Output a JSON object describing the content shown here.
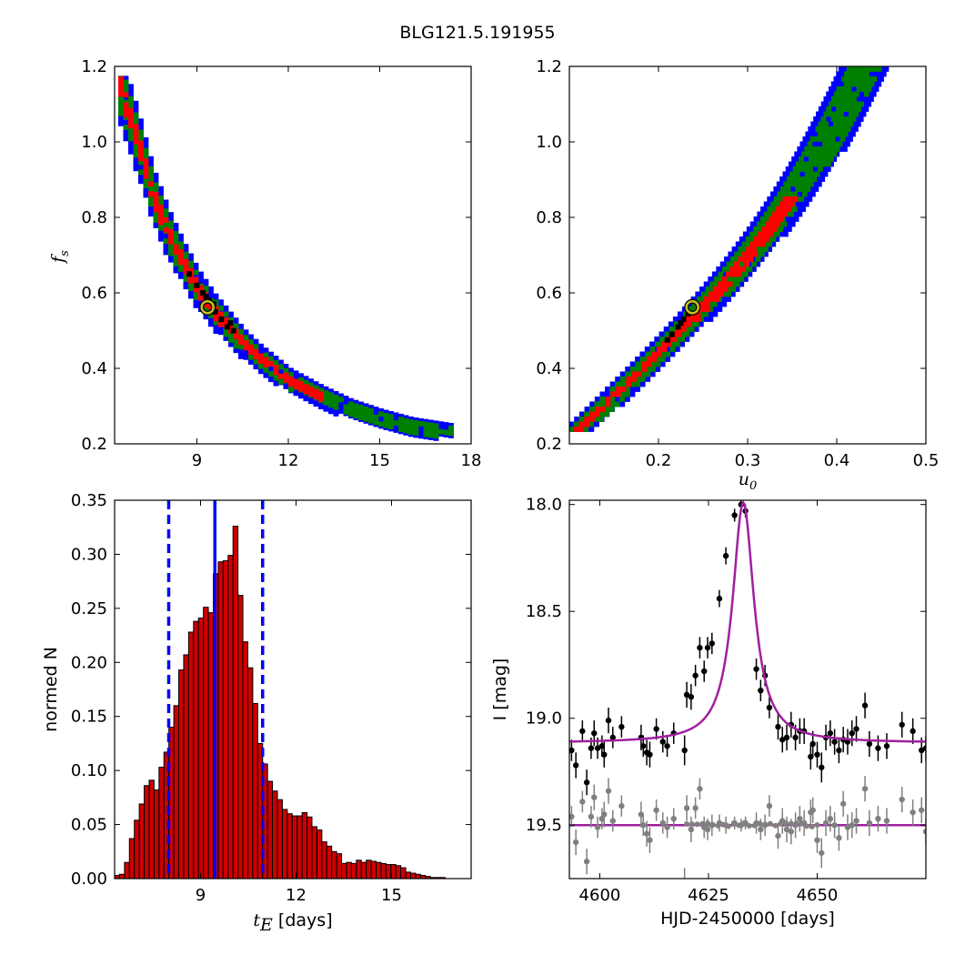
{
  "figure": {
    "title": "BLG121.5.191955"
  },
  "chart_data": [
    {
      "type": "heatmap",
      "panel": "fs_vs_tE",
      "xlim": [
        6.3,
        18
      ],
      "ylim": [
        0.2,
        1.2
      ],
      "xticks": [
        9,
        12,
        15,
        18
      ],
      "yticks": [
        0.2,
        0.4,
        0.6,
        0.8,
        1.0,
        1.2
      ],
      "xtick_labels": [
        "9",
        "12",
        "15",
        "18"
      ],
      "ytick_labels": [
        "0.2",
        "0.4",
        "0.6",
        "0.8",
        "1.0",
        "1.2"
      ],
      "xlabel": "",
      "ylabel": "f",
      "ylabel_sub": "s",
      "levels": [
        {
          "level": "outer",
          "color": "#0000ff"
        },
        {
          "level": "2-sigma",
          "color": "#008000"
        },
        {
          "level": "1-sigma",
          "color": "#ff0000"
        },
        {
          "level": "best",
          "color": "#000000"
        }
      ],
      "band": [
        {
          "x": 6.3,
          "y": 1.175
        },
        {
          "x": 7.0,
          "y": 1.0
        },
        {
          "x": 7.5,
          "y": 0.86
        },
        {
          "x": 8.0,
          "y": 0.76
        },
        {
          "x": 8.5,
          "y": 0.68
        },
        {
          "x": 9.0,
          "y": 0.61
        },
        {
          "x": 9.5,
          "y": 0.555
        },
        {
          "x": 10.0,
          "y": 0.51
        },
        {
          "x": 10.5,
          "y": 0.465
        },
        {
          "x": 11.0,
          "y": 0.43
        },
        {
          "x": 11.5,
          "y": 0.4
        },
        {
          "x": 12.0,
          "y": 0.37
        },
        {
          "x": 13.0,
          "y": 0.33
        },
        {
          "x": 14.0,
          "y": 0.295
        },
        {
          "x": 15.0,
          "y": 0.27
        },
        {
          "x": 16.0,
          "y": 0.25
        },
        {
          "x": 17.3,
          "y": 0.235
        }
      ],
      "red_xmax": 13.0,
      "best_fit": {
        "x": 9.35,
        "y": 0.562
      }
    },
    {
      "type": "heatmap",
      "panel": "fs_vs_u0",
      "xlim": [
        0.1,
        0.5
      ],
      "ylim": [
        0.2,
        1.2
      ],
      "xticks": [
        0.2,
        0.3,
        0.4,
        0.5
      ],
      "yticks": [
        0.2,
        0.4,
        0.6,
        0.8,
        1.0,
        1.2
      ],
      "xtick_labels": [
        "0.2",
        "0.3",
        "0.4",
        "0.5"
      ],
      "ytick_labels": [
        "0.2",
        "0.4",
        "0.6",
        "0.8",
        "1.0",
        "1.2"
      ],
      "xlabel": "u",
      "xlabel_sub": "0",
      "ylabel": "",
      "band_start": {
        "x": 0.105,
        "y": 0.235
      },
      "band_end": {
        "x": 0.43,
        "y": 1.2
      },
      "red_ymax": 0.86,
      "best_fit": {
        "x": 0.238,
        "y": 0.562
      }
    },
    {
      "type": "bar",
      "panel": "tE_histogram",
      "xlim": [
        6.3,
        17.5
      ],
      "ylim": [
        0.0,
        0.35
      ],
      "xticks": [
        9,
        12,
        15
      ],
      "xtick_labels": [
        "9",
        "12",
        "15"
      ],
      "yticks": [
        0.0,
        0.05,
        0.1,
        0.15,
        0.2,
        0.25,
        0.3,
        0.35
      ],
      "ytick_labels": [
        "0.00",
        "0.05",
        "0.10",
        "0.15",
        "0.20",
        "0.25",
        "0.30",
        "0.35"
      ],
      "xlabel": "t",
      "xlabel_sub": "E",
      "xlabel_unit": " [days]",
      "ylabel": "normed N",
      "bin_start": 6.3,
      "bin_width": 0.155,
      "bar_color": "#cc0000",
      "values": [
        0.003,
        0.004,
        0.015,
        0.037,
        0.054,
        0.069,
        0.086,
        0.091,
        0.082,
        0.103,
        0.117,
        0.14,
        0.16,
        0.193,
        0.207,
        0.228,
        0.238,
        0.241,
        0.251,
        0.246,
        0.282,
        0.293,
        0.294,
        0.299,
        0.326,
        0.262,
        0.219,
        0.195,
        0.162,
        0.125,
        0.106,
        0.09,
        0.081,
        0.073,
        0.064,
        0.06,
        0.058,
        0.058,
        0.061,
        0.057,
        0.048,
        0.045,
        0.034,
        0.03,
        0.025,
        0.023,
        0.014,
        0.015,
        0.014,
        0.017,
        0.015,
        0.017,
        0.016,
        0.015,
        0.014,
        0.013,
        0.013,
        0.012,
        0.01,
        0.006,
        0.005,
        0.004,
        0.003,
        0.002,
        0.001,
        0.001,
        0.001
      ],
      "median_line": {
        "x": 9.45,
        "color": "#0000ff"
      },
      "dashed_lines": [
        {
          "x": 8.0
        },
        {
          "x": 10.95
        }
      ]
    },
    {
      "type": "scatter",
      "panel": "lightcurve",
      "xlim": [
        4593,
        4675
      ],
      "ylim": [
        19.75,
        17.98
      ],
      "xticks": [
        4600,
        4625,
        4650
      ],
      "xtick_labels": [
        "4600",
        "4625",
        "4650"
      ],
      "yticks": [
        18.0,
        18.5,
        19.0,
        19.5
      ],
      "ytick_labels": [
        "18.0",
        "18.5",
        "19.0",
        "19.5"
      ],
      "xlabel": "HJD-2450000 [days]",
      "ylabel": "I [mag]",
      "model": {
        "t0": 4633.0,
        "tau": 3.0,
        "baseline": 19.115,
        "peak": 17.99,
        "color": "#a020a0"
      },
      "residual_line": {
        "y": 19.5,
        "color": "#a020a0"
      },
      "series": [
        {
          "color": "#000000",
          "points": [
            [
              4593.5,
              19.15,
              0.05
            ],
            [
              4594.5,
              19.22,
              0.06
            ],
            [
              4596,
              19.06,
              0.05
            ],
            [
              4597,
              19.3,
              0.06
            ],
            [
              4598,
              19.14,
              0.05
            ],
            [
              4598.7,
              19.07,
              0.06
            ],
            [
              4599.5,
              19.14,
              0.05
            ],
            [
              4600.5,
              19.13,
              0.05
            ],
            [
              4601,
              19.17,
              0.06
            ],
            [
              4602,
              19.01,
              0.06
            ],
            [
              4603,
              19.09,
              0.05
            ],
            [
              4605,
              19.04,
              0.05
            ],
            [
              4609.5,
              19.09,
              0.06
            ],
            [
              4610,
              19.13,
              0.05
            ],
            [
              4610.8,
              19.16,
              0.06
            ],
            [
              4611.5,
              19.17,
              0.06
            ],
            [
              4613,
              19.05,
              0.05
            ],
            [
              4614.5,
              19.11,
              0.05
            ],
            [
              4615.5,
              19.13,
              0.05
            ],
            [
              4617,
              19.07,
              0.05
            ],
            [
              4619.5,
              19.15,
              0.07
            ],
            [
              4620,
              18.89,
              0.06
            ],
            [
              4621,
              18.9,
              0.06
            ],
            [
              4622,
              18.8,
              0.05
            ],
            [
              4623,
              18.67,
              0.05
            ],
            [
              4624,
              18.78,
              0.05
            ],
            [
              4624.8,
              18.67,
              0.05
            ],
            [
              4625.8,
              18.65,
              0.05
            ],
            [
              4627.5,
              18.44,
              0.04
            ],
            [
              4629,
              18.24,
              0.04
            ],
            [
              4631,
              18.05,
              0.03
            ],
            [
              4632.5,
              18.0,
              0.03
            ],
            [
              4633.5,
              18.03,
              0.03
            ],
            [
              4636,
              18.77,
              0.05
            ],
            [
              4637,
              18.87,
              0.05
            ],
            [
              4638,
              18.8,
              0.05
            ],
            [
              4639,
              18.95,
              0.05
            ],
            [
              4641,
              19.04,
              0.06
            ],
            [
              4642,
              19.1,
              0.06
            ],
            [
              4643,
              19.09,
              0.06
            ],
            [
              4644,
              19.03,
              0.06
            ],
            [
              4645,
              19.09,
              0.06
            ],
            [
              4646,
              19.06,
              0.06
            ],
            [
              4647,
              19.06,
              0.06
            ],
            [
              4648.5,
              19.18,
              0.06
            ],
            [
              4649,
              19.12,
              0.06
            ],
            [
              4650,
              19.17,
              0.06
            ],
            [
              4651,
              19.23,
              0.07
            ],
            [
              4652,
              19.09,
              0.06
            ],
            [
              4653,
              19.07,
              0.06
            ],
            [
              4654,
              19.11,
              0.06
            ],
            [
              4655,
              19.15,
              0.06
            ],
            [
              4656,
              19.1,
              0.06
            ],
            [
              4657,
              19.11,
              0.06
            ],
            [
              4658,
              19.07,
              0.06
            ],
            [
              4659,
              19.05,
              0.06
            ],
            [
              4661,
              18.94,
              0.06
            ],
            [
              4662,
              19.12,
              0.06
            ],
            [
              4664,
              19.14,
              0.06
            ],
            [
              4666,
              19.13,
              0.06
            ],
            [
              4669.5,
              19.03,
              0.06
            ],
            [
              4672,
              19.06,
              0.06
            ],
            [
              4674,
              19.15,
              0.06
            ],
            [
              4675,
              19.14,
              0.06
            ]
          ]
        },
        {
          "color": "#808080",
          "points": [
            [
              4593.5,
              19.46,
              0.05
            ],
            [
              4594.5,
              19.58,
              0.06
            ],
            [
              4596,
              19.39,
              0.05
            ],
            [
              4597,
              19.67,
              0.06
            ],
            [
              4598,
              19.46,
              0.05
            ],
            [
              4598.7,
              19.37,
              0.06
            ],
            [
              4599.5,
              19.51,
              0.05
            ],
            [
              4600.5,
              19.47,
              0.05
            ],
            [
              4601,
              19.45,
              0.06
            ],
            [
              4602,
              19.34,
              0.06
            ],
            [
              4603,
              19.48,
              0.05
            ],
            [
              4605,
              19.41,
              0.05
            ],
            [
              4609.5,
              19.45,
              0.06
            ],
            [
              4610,
              19.5,
              0.05
            ],
            [
              4610.8,
              19.54,
              0.06
            ],
            [
              4611.5,
              19.57,
              0.06
            ],
            [
              4613,
              19.43,
              0.05
            ],
            [
              4614.5,
              19.49,
              0.05
            ],
            [
              4615.5,
              19.51,
              0.05
            ],
            [
              4617,
              19.47,
              0.05
            ],
            [
              4619.5,
              19.77,
              0.07
            ],
            [
              4620,
              19.42,
              0.06
            ],
            [
              4621,
              19.52,
              0.06
            ],
            [
              4622,
              19.42,
              0.05
            ],
            [
              4623,
              19.33,
              0.05
            ],
            [
              4624,
              19.51,
              0.05
            ],
            [
              4624.8,
              19.52,
              0.05
            ],
            [
              4625.8,
              19.5,
              0.05
            ],
            [
              4627.5,
              19.49,
              0.04
            ],
            [
              4629,
              19.5,
              0.04
            ],
            [
              4631,
              19.49,
              0.03
            ],
            [
              4632.5,
              19.5,
              0.03
            ],
            [
              4633.5,
              19.49,
              0.03
            ],
            [
              4636,
              19.49,
              0.05
            ],
            [
              4637,
              19.52,
              0.05
            ],
            [
              4638,
              19.5,
              0.05
            ],
            [
              4639,
              19.41,
              0.05
            ],
            [
              4641,
              19.55,
              0.06
            ],
            [
              4642,
              19.48,
              0.06
            ],
            [
              4643,
              19.52,
              0.06
            ],
            [
              4644,
              19.53,
              0.06
            ],
            [
              4645,
              19.5,
              0.06
            ],
            [
              4646,
              19.47,
              0.06
            ],
            [
              4647,
              19.49,
              0.06
            ],
            [
              4648.5,
              19.44,
              0.06
            ],
            [
              4649,
              19.43,
              0.06
            ],
            [
              4650,
              19.57,
              0.06
            ],
            [
              4651,
              19.63,
              0.07
            ],
            [
              4652,
              19.49,
              0.06
            ],
            [
              4653,
              19.47,
              0.06
            ],
            [
              4654,
              19.5,
              0.06
            ],
            [
              4655,
              19.56,
              0.06
            ],
            [
              4656,
              19.4,
              0.06
            ],
            [
              4657,
              19.51,
              0.06
            ],
            [
              4658,
              19.5,
              0.06
            ],
            [
              4659,
              19.48,
              0.06
            ],
            [
              4661,
              19.33,
              0.06
            ],
            [
              4662,
              19.49,
              0.06
            ],
            [
              4664,
              19.47,
              0.06
            ],
            [
              4666,
              19.48,
              0.06
            ],
            [
              4669.5,
              19.38,
              0.06
            ],
            [
              4672,
              19.44,
              0.06
            ],
            [
              4674,
              19.43,
              0.06
            ],
            [
              4675,
              19.53,
              0.06
            ]
          ]
        }
      ]
    }
  ]
}
